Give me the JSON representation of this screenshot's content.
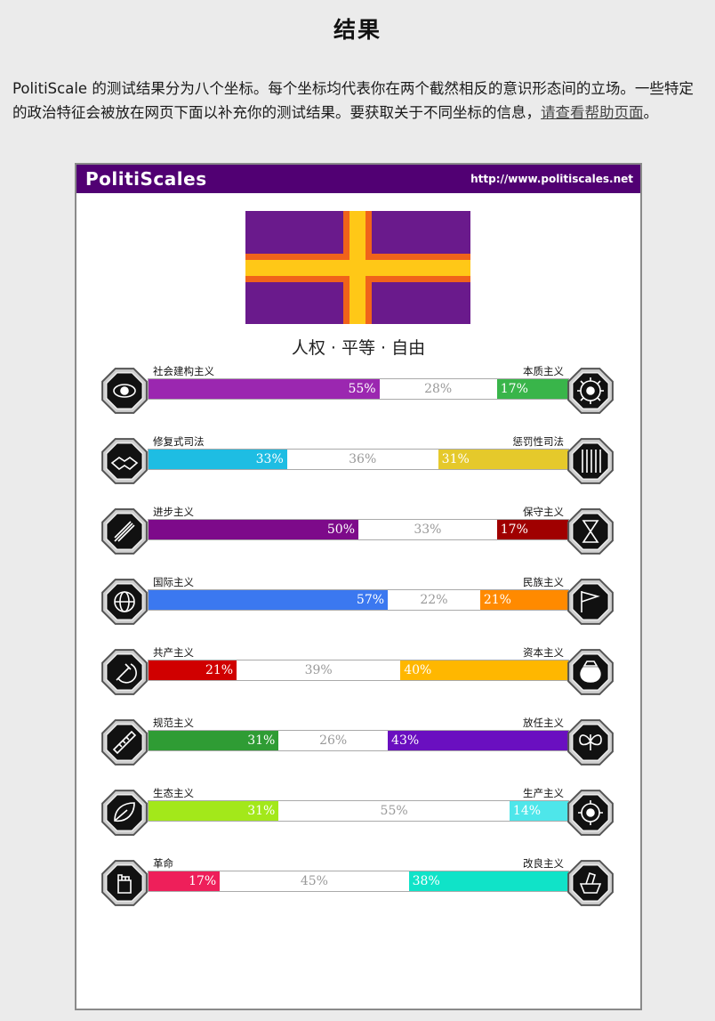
{
  "page": {
    "title": "结果",
    "intro_text": "PolitiScale 的测试结果分为八个坐标。每个坐标均代表你在两个截然相反的意识形态间的立场。一些特定的政治特征会被放在网页下面以补充你的测试结果。要获取关于不同坐标的信息，",
    "help_link": "请查看帮助页面",
    "intro_end": "。"
  },
  "card": {
    "brand": "PolitiScales",
    "url": "http://www.politiscales.net",
    "motto": "人权 · 平等 · 自由",
    "flag_colors": {
      "field": "#6a1a8c",
      "outer_cross": "#f0631a",
      "inner_cross": "#ffc817"
    }
  },
  "axes": [
    {
      "left_label": "社会建构主义",
      "right_label": "本质主义",
      "left": 55,
      "mid": 28,
      "right": 17,
      "left_color": "#9b27b0",
      "right_color": "#39b54a",
      "left_icon": "eye-icon",
      "right_icon": "flower-icon"
    },
    {
      "left_label": "修复式司法",
      "right_label": "惩罚性司法",
      "left": 33,
      "mid": 36,
      "right": 31,
      "left_color": "#1ebde3",
      "right_color": "#e5c92b",
      "left_icon": "handshake-icon",
      "right_icon": "prison-bars-icon"
    },
    {
      "left_label": "进步主义",
      "right_label": "保守主义",
      "left": 50,
      "mid": 33,
      "right": 17,
      "left_color": "#7d0a8a",
      "right_color": "#a00000",
      "left_icon": "rocket-icon",
      "right_icon": "hourglass-icon"
    },
    {
      "left_label": "国际主义",
      "right_label": "民族主义",
      "left": 57,
      "mid": 22,
      "right": 21,
      "left_color": "#3b78f0",
      "right_color": "#ff8a00",
      "left_icon": "globe-icon",
      "right_icon": "flag-icon"
    },
    {
      "left_label": "共产主义",
      "right_label": "资本主义",
      "left": 21,
      "mid": 39,
      "right": 40,
      "left_color": "#d00000",
      "right_color": "#ffb700",
      "left_icon": "hammer-sickle-icon",
      "right_icon": "money-bag-icon"
    },
    {
      "left_label": "规范主义",
      "right_label": "放任主义",
      "left": 31,
      "mid": 26,
      "right": 43,
      "left_color": "#2f9c34",
      "right_color": "#6a0fc0",
      "left_icon": "ruler-icon",
      "right_icon": "butterfly-icon"
    },
    {
      "left_label": "生态主义",
      "right_label": "生产主义",
      "left": 31,
      "mid": 55,
      "right": 14,
      "left_color": "#a3e81a",
      "right_color": "#4ee6ea",
      "left_icon": "leaf-icon",
      "right_icon": "factory-icon"
    },
    {
      "left_label": "革命",
      "right_label": "改良主义",
      "left": 17,
      "mid": 45,
      "right": 38,
      "left_color": "#ee1f5a",
      "right_color": "#10e3c8",
      "left_icon": "fist-icon",
      "right_icon": "ballot-icon"
    }
  ]
}
